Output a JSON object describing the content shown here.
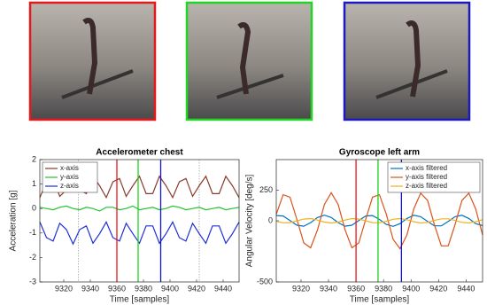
{
  "chart_data": [
    {
      "type": "line",
      "title": "Accelerometer chest",
      "xlabel": "Time [samples]",
      "ylabel": "Acceleration [g]",
      "x": [
        9302,
        9307,
        9312,
        9317,
        9322,
        9327,
        9332,
        9337,
        9342,
        9347,
        9352,
        9357,
        9362,
        9367,
        9372,
        9377,
        9382,
        9387,
        9392,
        9397,
        9402,
        9407,
        9412,
        9417,
        9422,
        9427,
        9432,
        9437,
        9442,
        9447,
        9452
      ],
      "series": [
        {
          "name": "x-axis",
          "color": "#8b3a2a",
          "values": [
            0.45,
            1.09,
            1.23,
            0.5,
            0.76,
            1.35,
            0.76,
            0.61,
            1.32,
            0.93,
            0.45,
            1.09,
            1.23,
            0.5,
            0.93,
            1.32,
            0.61,
            0.61,
            1.32,
            0.93,
            0.45,
            1.09,
            1.23,
            0.5,
            0.93,
            1.32,
            0.61,
            0.61,
            1.32,
            0.93,
            0.45
          ]
        },
        {
          "name": "y-axis",
          "color": "#22c32e",
          "values": [
            0.05,
            0.0,
            -0.05,
            0.05,
            0.1,
            0.0,
            -0.05,
            0.05,
            0.0,
            -0.1,
            0.05,
            0.05,
            -0.05,
            0.0,
            0.1,
            -0.05,
            0.0,
            0.05,
            -0.05,
            0.0,
            0.1,
            0.05,
            -0.05,
            0.0,
            0.05,
            -0.05,
            0.0,
            0.05,
            -0.05,
            0.0,
            0.05
          ]
        },
        {
          "name": "z-axis",
          "color": "#1f2fd6",
          "values": [
            -0.55,
            -1.19,
            -1.33,
            -0.6,
            -0.86,
            -1.45,
            -0.86,
            -0.71,
            -1.42,
            -1.03,
            -0.55,
            -1.19,
            -1.33,
            -0.6,
            -1.03,
            -1.42,
            -0.71,
            -0.71,
            -1.42,
            -1.03,
            -0.55,
            -1.19,
            -1.33,
            -0.6,
            -1.03,
            -1.42,
            -0.71,
            -0.71,
            -1.42,
            -1.03,
            -0.55
          ]
        }
      ],
      "xlim": [
        9302,
        9452
      ],
      "xticks": [
        9320,
        9340,
        9360,
        9380,
        9400,
        9420,
        9440
      ],
      "ylim": [
        -3,
        2
      ],
      "yticks": [
        -3,
        -2,
        -1,
        0,
        1,
        2
      ],
      "markers": [
        {
          "x": 9360,
          "color": "#e8161b"
        },
        {
          "x": 9376,
          "color": "#1fd21f"
        },
        {
          "x": 9393,
          "color": "#1515c8"
        }
      ],
      "dotted_lines": [
        9331,
        9422
      ],
      "legend": "upper left"
    },
    {
      "type": "line",
      "title": "Gyroscope left arm",
      "xlabel": "Time [samples]",
      "ylabel": "Angular Velocity [deg/s]",
      "x": [
        9302,
        9307,
        9312,
        9317,
        9322,
        9327,
        9332,
        9337,
        9342,
        9347,
        9352,
        9357,
        9362,
        9367,
        9372,
        9377,
        9382,
        9387,
        9392,
        9397,
        9402,
        9407,
        9412,
        9417,
        9422,
        9427,
        9432,
        9437,
        9442,
        9447,
        9452
      ],
      "series": [
        {
          "name": "x-axis filtered",
          "color": "#0072bd",
          "values": [
            43,
            39,
            2,
            -36,
            -44,
            -15,
            27,
            46,
            27,
            -15,
            -44,
            -36,
            2,
            39,
            43,
            11,
            -30,
            -46,
            -23,
            19,
            45,
            33,
            -6,
            -41,
            -41,
            -6,
            33,
            45,
            19,
            -23,
            -40
          ]
        },
        {
          "name": "y-axis filtered",
          "color": "#d95319",
          "values": [
            53,
            213,
            193,
            11,
            -181,
            -221,
            -74,
            133,
            230,
            133,
            -74,
            -221,
            -181,
            11,
            193,
            213,
            53,
            -152,
            -228,
            -115,
            97,
            225,
            166,
            -32,
            -205,
            -205,
            -32,
            166,
            225,
            97,
            -115
          ]
        },
        {
          "name": "z-axis filtered",
          "color": "#edb120",
          "values": [
            -4,
            -17,
            -15,
            -1,
            14,
            18,
            6,
            -11,
            -18,
            -11,
            6,
            18,
            14,
            -1,
            -15,
            -17,
            -4,
            12,
            18,
            9,
            -8,
            -18,
            -13,
            3,
            16,
            16,
            3,
            -13,
            -18,
            -8,
            9
          ]
        }
      ],
      "xlim": [
        9302,
        9452
      ],
      "xticks": [
        9320,
        9340,
        9360,
        9380,
        9400,
        9420,
        9440
      ],
      "ylim": [
        -500,
        500
      ],
      "yticks": [
        -500,
        0,
        250
      ],
      "markers": [
        {
          "x": 9360,
          "color": "#e8161b"
        },
        {
          "x": 9376,
          "color": "#1fd21f"
        },
        {
          "x": 9393,
          "color": "#1515c8"
        }
      ],
      "legend": "upper right"
    }
  ]
}
